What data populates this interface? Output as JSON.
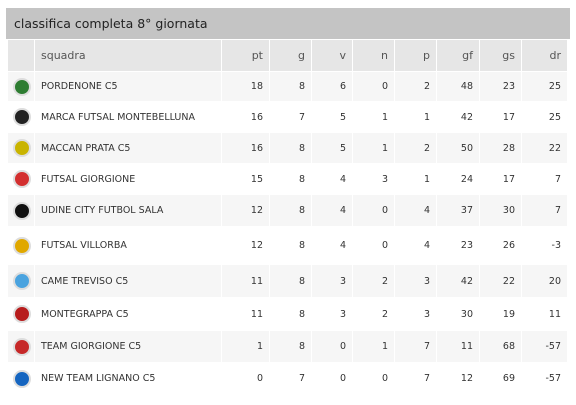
{
  "title": "classifica completa 8° giornata",
  "table": {
    "columns": [
      "squadra",
      "pt",
      "g",
      "v",
      "n",
      "p",
      "gf",
      "gs",
      "dr"
    ],
    "rows": [
      [
        "PORDENONE C5",
        18,
        8,
        6,
        0,
        2,
        48,
        23,
        25
      ],
      [
        "MARCA FUTSAL MONTEBELLUNA",
        16,
        7,
        5,
        1,
        1,
        42,
        17,
        25
      ],
      [
        "MACCAN PRATA C5",
        16,
        8,
        5,
        1,
        2,
        50,
        28,
        22
      ],
      [
        "FUTSAL GIORGIONE",
        15,
        8,
        4,
        3,
        1,
        24,
        17,
        7
      ],
      [
        "UDINE CITY FUTBOL SALA",
        12,
        8,
        4,
        0,
        4,
        37,
        30,
        7
      ],
      [
        "FUTSAL VILLORBA",
        12,
        8,
        4,
        0,
        4,
        23,
        26,
        -3
      ],
      [
        "CAME TREVISO C5",
        11,
        8,
        3,
        2,
        3,
        42,
        22,
        20
      ],
      [
        "MONTEGRAPPA C5",
        11,
        8,
        3,
        2,
        3,
        30,
        19,
        11
      ],
      [
        "TEAM GIORGIONE C5",
        1,
        8,
        0,
        1,
        7,
        11,
        68,
        -57
      ],
      [
        "NEW TEAM LIGNANO C5",
        0,
        7,
        0,
        0,
        7,
        12,
        69,
        -57
      ]
    ]
  }
}
